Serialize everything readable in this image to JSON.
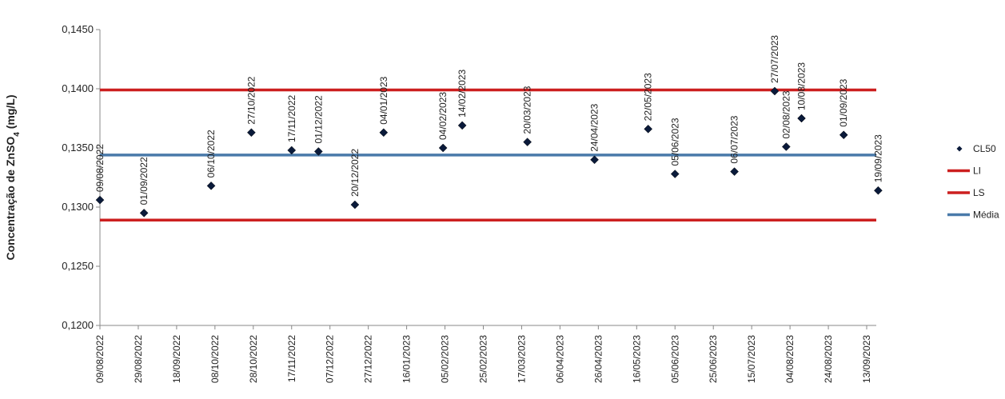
{
  "chart_data": {
    "type": "scatter",
    "ylabel_main": "Concentração de ZnSO",
    "ylabel_sub": "4",
    "ylabel_unit": " (mg/L)",
    "ylim": [
      0.12,
      0.145
    ],
    "yticks": [
      "0,1200",
      "0,1250",
      "0,1300",
      "0,1350",
      "0,1400",
      "0,1450"
    ],
    "yticks_values": [
      0.12,
      0.125,
      0.13,
      0.135,
      0.14,
      0.145
    ],
    "xlim": [
      "2022-08-09",
      "2023-09-18"
    ],
    "xticks": [
      {
        "date": "2022-08-09",
        "label": "09/08/2022"
      },
      {
        "date": "2022-08-29",
        "label": "29/08/2022"
      },
      {
        "date": "2022-09-18",
        "label": "18/09/2022"
      },
      {
        "date": "2022-10-08",
        "label": "08/10/2022"
      },
      {
        "date": "2022-10-28",
        "label": "28/10/2022"
      },
      {
        "date": "2022-11-17",
        "label": "17/11/2022"
      },
      {
        "date": "2022-12-07",
        "label": "07/12/2022"
      },
      {
        "date": "2022-12-27",
        "label": "27/12/2022"
      },
      {
        "date": "2023-01-16",
        "label": "16/01/2023"
      },
      {
        "date": "2023-02-05",
        "label": "05/02/2023"
      },
      {
        "date": "2023-02-25",
        "label": "25/02/2023"
      },
      {
        "date": "2023-03-17",
        "label": "17/03/2023"
      },
      {
        "date": "2023-04-06",
        "label": "06/04/2023"
      },
      {
        "date": "2023-04-26",
        "label": "26/04/2023"
      },
      {
        "date": "2023-05-16",
        "label": "16/05/2023"
      },
      {
        "date": "2023-06-05",
        "label": "05/06/2023"
      },
      {
        "date": "2023-06-25",
        "label": "25/06/2023"
      },
      {
        "date": "2023-07-15",
        "label": "15/07/2023"
      },
      {
        "date": "2023-08-04",
        "label": "04/08/2023"
      },
      {
        "date": "2023-08-24",
        "label": "24/08/2023"
      },
      {
        "date": "2023-09-13",
        "label": "13/09/2023"
      }
    ],
    "series": [
      {
        "name": "CL50",
        "marker": "diamond",
        "color": "#0a1a3a",
        "points": [
          {
            "x": "2022-08-09",
            "y": 0.1306,
            "label": "09/08/2022"
          },
          {
            "x": "2022-09-01",
            "y": 0.1295,
            "label": "01/09/2022"
          },
          {
            "x": "2022-10-06",
            "y": 0.1318,
            "label": "06/10/2022"
          },
          {
            "x": "2022-10-27",
            "y": 0.1363,
            "label": "27/10/2022"
          },
          {
            "x": "2022-11-17",
            "y": 0.1348,
            "label": "17/11/2022"
          },
          {
            "x": "2022-12-01",
            "y": 0.1347,
            "label": "01/12/2022"
          },
          {
            "x": "2022-12-20",
            "y": 0.1302,
            "label": "20/12/2022"
          },
          {
            "x": "2023-01-04",
            "y": 0.1363,
            "label": "04/01/2023"
          },
          {
            "x": "2023-02-04",
            "y": 0.135,
            "label": "04/02/2023"
          },
          {
            "x": "2023-02-14",
            "y": 0.1369,
            "label": "14/02/2023"
          },
          {
            "x": "2023-03-20",
            "y": 0.1355,
            "label": "20/03/2023"
          },
          {
            "x": "2023-04-24",
            "y": 0.134,
            "label": "24/04/2023"
          },
          {
            "x": "2023-05-22",
            "y": 0.1366,
            "label": "22/05/2023"
          },
          {
            "x": "2023-06-05",
            "y": 0.1328,
            "label": "05/06/2023"
          },
          {
            "x": "2023-07-06",
            "y": 0.133,
            "label": "06/07/2023"
          },
          {
            "x": "2023-07-27",
            "y": 0.1398,
            "label": "27/07/2023"
          },
          {
            "x": "2023-08-02",
            "y": 0.1351,
            "label": "02/08/2023"
          },
          {
            "x": "2023-08-10",
            "y": 0.1375,
            "label": "10/08/2023"
          },
          {
            "x": "2023-09-01",
            "y": 0.1361,
            "label": "01/09/2023"
          },
          {
            "x": "2023-09-19",
            "y": 0.1314,
            "label": "19/09/2023"
          }
        ]
      },
      {
        "name": "LI",
        "type": "hline",
        "y": 0.1289,
        "color": "#cc1f1f"
      },
      {
        "name": "LS",
        "type": "hline",
        "y": 0.1399,
        "color": "#cc1f1f"
      },
      {
        "name": "Média",
        "type": "hline",
        "y": 0.1344,
        "color": "#4a7aaa"
      }
    ],
    "legend_position": "right",
    "grid": false
  }
}
